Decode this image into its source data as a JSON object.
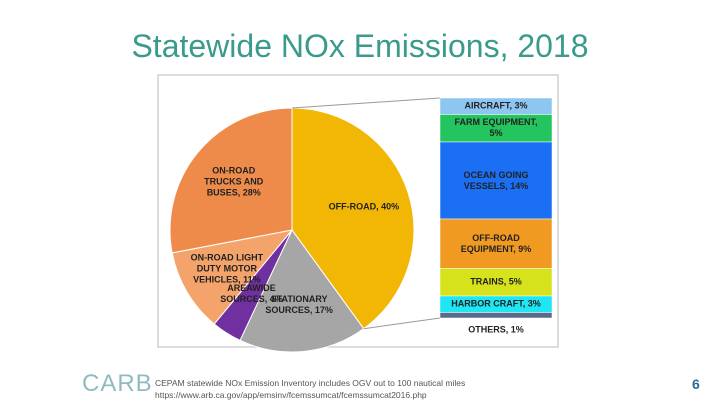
{
  "chart_data": {
    "type": "bar-of-pie",
    "title": "Statewide NOx Emissions, 2018",
    "pie": {
      "labels": [
        "OFF-ROAD, 40%",
        "STATIONARY SOURCES, 17%",
        "AREAWIDE SOURCES, 4%",
        "ON-ROAD LIGHT DUTY MOTOR VEHICLES, 11%",
        "ON-ROAD TRUCKS AND BUSES, 28%"
      ],
      "values": [
        40,
        17,
        4,
        11,
        28
      ],
      "colors": [
        "#f2b705",
        "#a6a6a6",
        "#7030a0",
        "#f4a46a",
        "#ee8b4a"
      ]
    },
    "breakdown": {
      "labels": [
        "AIRCRAFT, 3%",
        "FARM EQUIPMENT, 5%",
        "OCEAN GOING VESSELS, 14%",
        "OFF-ROAD EQUIPMENT, 9%",
        "TRAINS, 5%",
        "HARBOR CRAFT, 3%",
        "OTHERS, 1%"
      ],
      "values": [
        3,
        5,
        14,
        9,
        5,
        3,
        1
      ],
      "colors": [
        "#8ec6f2",
        "#22c55e",
        "#1a6ff5",
        "#f09a22",
        "#d6e21c",
        "#1ee6f2",
        "#5a6a8a"
      ]
    },
    "footnotes": [
      "CEPAM statewide NOx Emission Inventory includes OGV out to 100 nautical miles",
      "https://www.arb.ca.gov/app/emsinv/fcemssumcat/fcemssumcat2016.php"
    ],
    "logo": "CARB",
    "page_number": "6"
  }
}
